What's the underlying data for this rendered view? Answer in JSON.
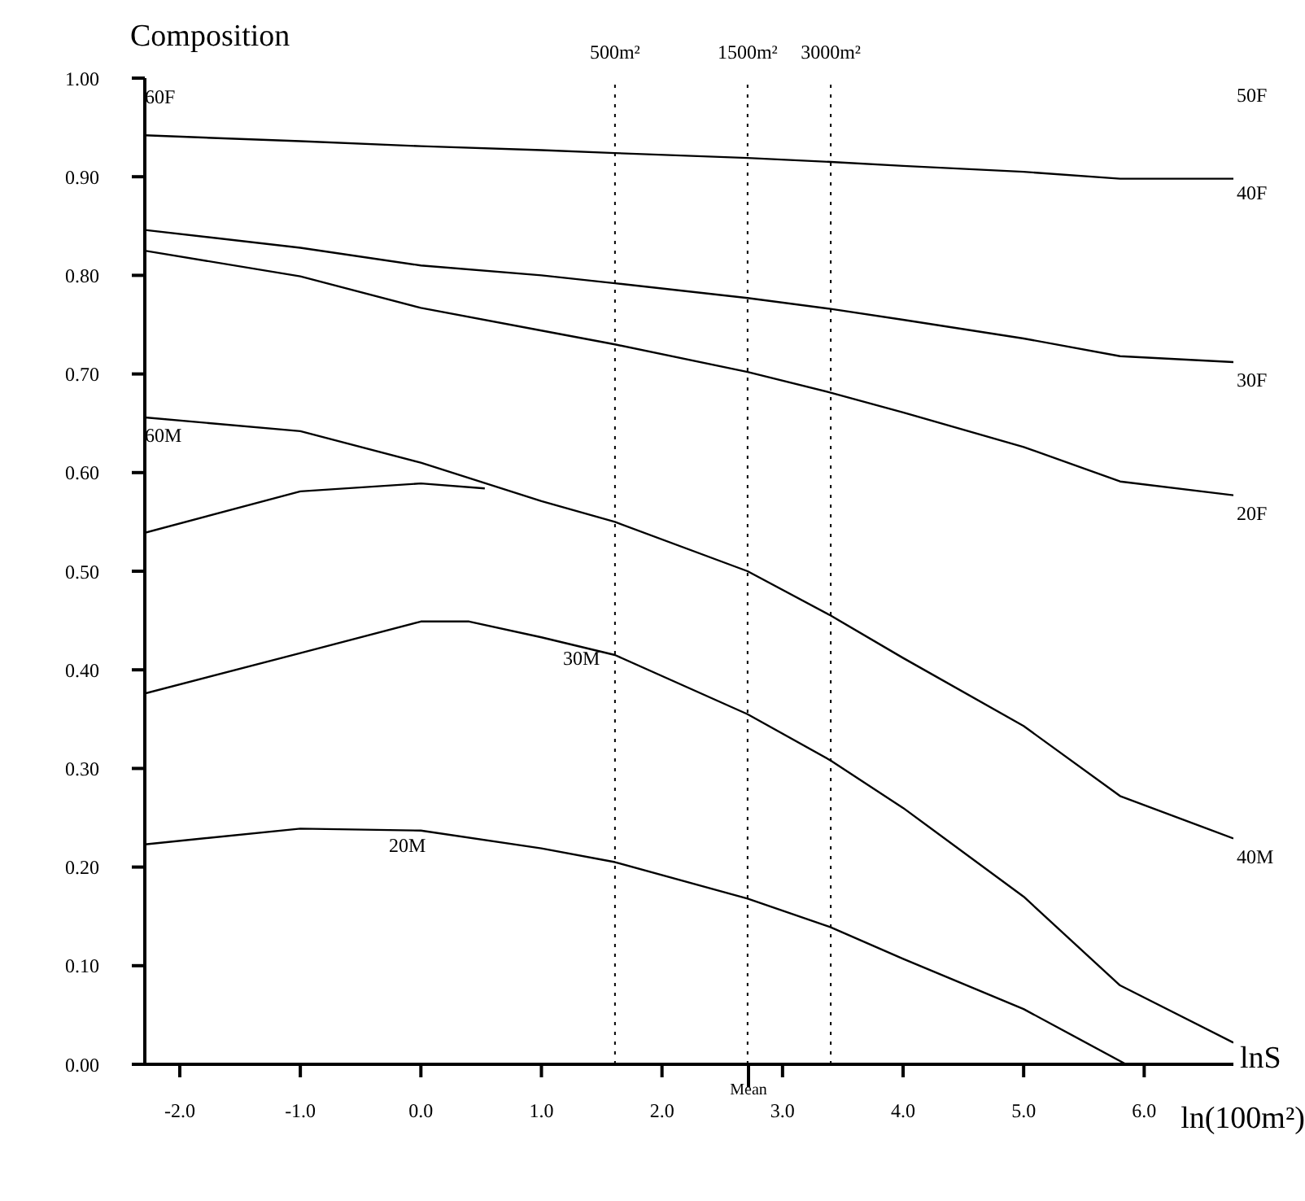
{
  "chart_data": {
    "type": "line",
    "ylabel": "Composition",
    "xlabel": "lnS",
    "marker": "none",
    "line_style": "solid",
    "xlim": [
      -2.29,
      6.74
    ],
    "ylim": [
      0,
      1
    ],
    "xticks": [
      {
        "value": -2,
        "label": "-2.0"
      },
      {
        "value": -1,
        "label": "-1.0"
      },
      {
        "value": 0,
        "label": "0.0"
      },
      {
        "value": 1,
        "label": "1.0"
      },
      {
        "value": 2,
        "label": "2.0"
      },
      {
        "value": 3,
        "label": "3.0"
      },
      {
        "value": 4,
        "label": "4.0"
      },
      {
        "value": 5,
        "label": "5.0"
      },
      {
        "value": 6,
        "label": "6.0"
      }
    ],
    "yticks": [
      {
        "value": 0,
        "label": "0.00"
      },
      {
        "value": 0.1,
        "label": "0.10"
      },
      {
        "value": 0.2,
        "label": "0.20"
      },
      {
        "value": 0.3,
        "label": "0.30"
      },
      {
        "value": 0.4,
        "label": "0.40"
      },
      {
        "value": 0.5,
        "label": "0.50"
      },
      {
        "value": 0.6,
        "label": "0.60"
      },
      {
        "value": 0.7,
        "label": "0.70"
      },
      {
        "value": 0.8,
        "label": "0.80"
      },
      {
        "value": 0.9,
        "label": "0.90"
      },
      {
        "value": 1,
        "label": "1.00"
      }
    ],
    "series": [
      {
        "color": "#000000",
        "x": [
          -2.29,
          -1,
          0,
          1,
          1.61,
          2.71,
          3.4,
          4,
          5,
          5.8,
          6.74
        ],
        "values": [
          0.942,
          0.936,
          0.931,
          0.927,
          0.924,
          0.919,
          0.915,
          0.911,
          0.905,
          0.898,
          0.898
        ]
      },
      {
        "color": "#000000",
        "x": [
          -2.29,
          -1,
          0,
          1,
          1.61,
          2.71,
          3.4,
          4,
          5,
          5.8,
          6.74
        ],
        "values": [
          0.846,
          0.828,
          0.81,
          0.8,
          0.792,
          0.777,
          0.766,
          0.755,
          0.736,
          0.718,
          0.712
        ]
      },
      {
        "color": "#000000",
        "x": [
          -2.29,
          -1,
          0,
          1,
          1.61,
          2.71,
          3.4,
          4,
          5,
          5.8,
          6.74
        ],
        "values": [
          0.825,
          0.799,
          0.767,
          0.744,
          0.73,
          0.702,
          0.681,
          0.661,
          0.626,
          0.591,
          0.577
        ]
      },
      {
        "color": "#000000",
        "x": [
          -2.29,
          -1,
          0,
          1,
          1.61,
          2.71,
          3.4,
          4,
          5,
          5.8,
          6.74
        ],
        "values": [
          0.656,
          0.642,
          0.61,
          0.571,
          0.55,
          0.5,
          0.455,
          0.412,
          0.343,
          0.272,
          0.229
        ]
      },
      {
        "color": "#000000",
        "x": [
          -2.29,
          -1,
          0,
          0.53
        ],
        "values": [
          0.539,
          0.581,
          0.589,
          0.584
        ]
      },
      {
        "color": "#000000",
        "x": [
          -2.29,
          -1,
          0,
          0.4,
          1,
          1.61,
          2.71,
          3.4,
          4,
          5,
          5.8,
          6.74
        ],
        "values": [
          0.376,
          0.417,
          0.449,
          0.449,
          0.433,
          0.415,
          0.355,
          0.308,
          0.26,
          0.17,
          0.08,
          0.022
        ]
      },
      {
        "color": "#000000",
        "x": [
          -2.29,
          -1,
          0,
          1,
          1.61,
          2.71,
          3.4,
          4,
          5,
          5.85
        ],
        "values": [
          0.223,
          0.239,
          0.237,
          0.219,
          0.205,
          0.168,
          0.139,
          0.107,
          0.056,
          0
        ]
      }
    ],
    "ref_lines": [
      {
        "axis": "x",
        "value": 1.61,
        "label": "500m²",
        "line_style": "dotted",
        "color": "#000000"
      },
      {
        "axis": "x",
        "value": 2.71,
        "label": "1500m²",
        "line_style": "dotted",
        "color": "#000000"
      },
      {
        "axis": "x",
        "value": 3.4,
        "label": "3000m²",
        "line_style": "dotted",
        "color": "#000000"
      }
    ],
    "annotations": [
      "60F",
      "50F",
      "40F",
      "30F",
      "20F",
      "60M",
      "30M",
      "20M",
      "40M",
      "Mean",
      "ln(100m²)"
    ]
  }
}
